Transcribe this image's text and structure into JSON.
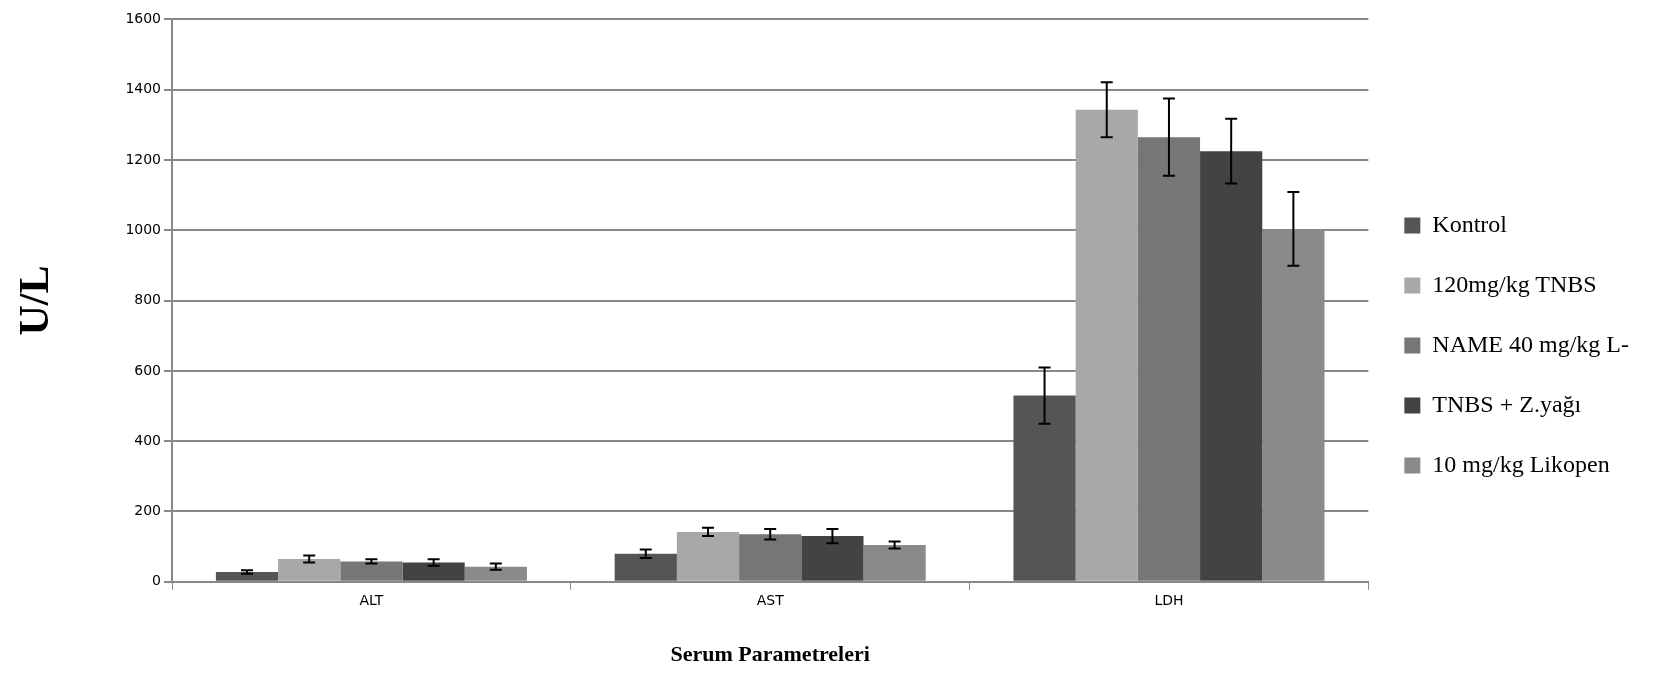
{
  "chart_data": {
    "type": "bar",
    "xlabel": "Serum Parametreleri",
    "ylabel": "U/L",
    "categories": [
      "ALT",
      "AST",
      "LDH"
    ],
    "series": [
      {
        "name": "Kontrol",
        "color": "#555555",
        "values": [
          28,
          80,
          530
        ],
        "errors": [
          5,
          12,
          80
        ]
      },
      {
        "name": "120mg/kg TNBS",
        "color": "#a8a8a8",
        "values": [
          65,
          142,
          1343
        ],
        "errors": [
          10,
          12,
          78
        ]
      },
      {
        "name": "NAME 40 mg/kg L-",
        "color": "#767676",
        "values": [
          58,
          135,
          1265
        ],
        "errors": [
          6,
          15,
          110
        ]
      },
      {
        "name": "TNBS + Z.yağı",
        "color": "#434343",
        "values": [
          55,
          130,
          1225
        ],
        "errors": [
          9,
          20,
          92
        ]
      },
      {
        "name": "10 mg/kg Likopen",
        "color": "#8a8a8a",
        "values": [
          43,
          105,
          1004
        ],
        "errors": [
          9,
          10,
          105
        ]
      }
    ],
    "ylim": [
      0,
      1600
    ],
    "yticks": [
      0,
      200,
      400,
      600,
      800,
      1000,
      1200,
      1400,
      1600
    ],
    "grid": "y",
    "legend": "right"
  }
}
